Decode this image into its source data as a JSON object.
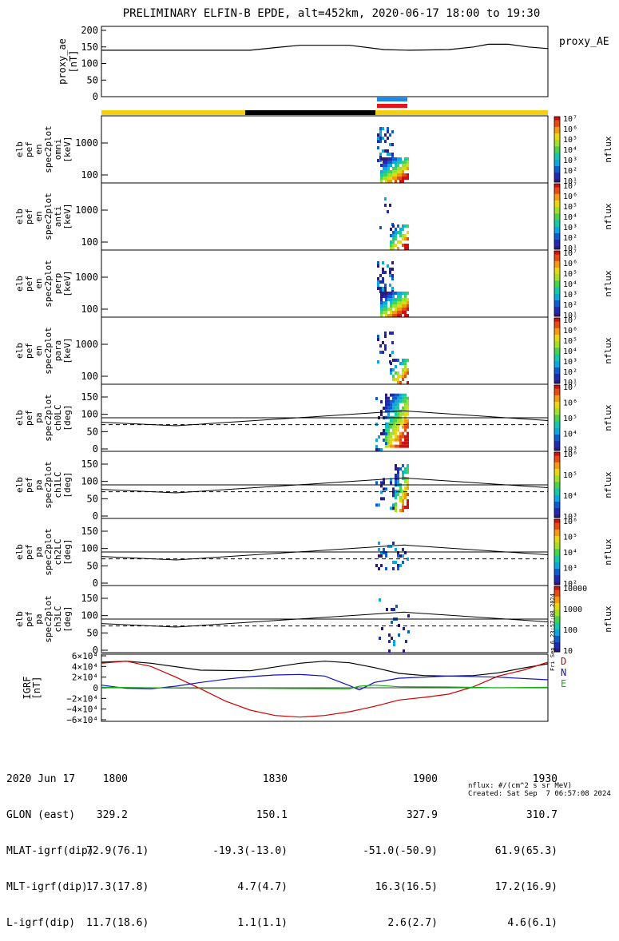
{
  "title": "PRELIMINARY ELFIN-B EPDE, alt=452km, 2020-06-17 18:00 to 19:30",
  "colors": {
    "yellow": "#f5d010",
    "black": "#000000",
    "blue_bar": "#1e88e5",
    "red_bar": "#e8121a",
    "igrf_d": "#d00000",
    "igrf_n": "#1010c0",
    "igrf_e": "#10b010"
  },
  "chart_data": [
    {
      "type": "line",
      "name": "proxy_ae",
      "ylabel_lines": [
        "proxy_ae",
        "[nT]"
      ],
      "legend": "proxy_AE",
      "ylim": [
        0,
        200
      ],
      "yticks": [
        "0",
        "50",
        "100",
        "150",
        "200"
      ],
      "x_minutes": [
        0,
        30,
        35,
        40,
        50,
        57,
        62,
        70,
        75,
        78,
        82,
        86,
        90
      ],
      "values": [
        140,
        140,
        148,
        155,
        155,
        142,
        140,
        142,
        150,
        158,
        158,
        150,
        145
      ]
    },
    {
      "type": "heatmap",
      "name": "omni",
      "ylabel_lines": [
        "elb",
        "pef",
        "en",
        "spec2plot",
        "omni",
        "[keV]"
      ],
      "yticks": [
        "100",
        "1000"
      ],
      "colorbar": {
        "label": "nflux",
        "ticks": [
          "10¹",
          "10²",
          "10³",
          "10⁴",
          "10⁵",
          "10⁶",
          "10⁷"
        ]
      }
    },
    {
      "type": "heatmap",
      "name": "anti",
      "ylabel_lines": [
        "elb",
        "pef",
        "en",
        "spec2plot",
        "anti",
        "[keV]"
      ],
      "yticks": [
        "100",
        "1000"
      ],
      "colorbar": {
        "label": "nflux",
        "ticks": [
          "10¹",
          "10²",
          "10³",
          "10⁴",
          "10⁵",
          "10⁶",
          "10⁷"
        ]
      }
    },
    {
      "type": "heatmap",
      "name": "perp",
      "ylabel_lines": [
        "elb",
        "pef",
        "en",
        "spec2plot",
        "perp",
        "[keV]"
      ],
      "yticks": [
        "100",
        "1000"
      ],
      "colorbar": {
        "label": "nflux",
        "ticks": [
          "10¹",
          "10²",
          "10³",
          "10⁴",
          "10⁵",
          "10⁶",
          "10⁷"
        ]
      }
    },
    {
      "type": "heatmap",
      "name": "para",
      "ylabel_lines": [
        "elb",
        "pef",
        "en",
        "spec2plot",
        "para",
        "[keV]"
      ],
      "yticks": [
        "100",
        "1000"
      ],
      "colorbar": {
        "label": "nflux",
        "ticks": [
          "10¹",
          "10²",
          "10³",
          "10⁴",
          "10⁵",
          "10⁶",
          "10⁷"
        ]
      }
    },
    {
      "type": "heatmap",
      "name": "ch0LC",
      "ylabel_lines": [
        "elb",
        "pef",
        "pa",
        "spec2plot",
        "ch0LC",
        "[deg]"
      ],
      "yticks": [
        "0",
        "50",
        "100",
        "150"
      ],
      "colorbar": {
        "label": "nflux",
        "ticks": [
          "10³",
          "10⁴",
          "10⁵",
          "10⁶",
          "10⁷"
        ]
      }
    },
    {
      "type": "heatmap",
      "name": "ch1LC",
      "ylabel_lines": [
        "elb",
        "pef",
        "pa",
        "spec2plot",
        "ch1LC",
        "[deg]"
      ],
      "yticks": [
        "0",
        "50",
        "100",
        "150"
      ],
      "colorbar": {
        "label": "nflux",
        "ticks": [
          "10³",
          "10⁴",
          "10⁵",
          "10⁶"
        ]
      }
    },
    {
      "type": "heatmap",
      "name": "ch2LC",
      "ylabel_lines": [
        "elb",
        "pef",
        "pa",
        "spec2plot",
        "ch2LC",
        "[deg]"
      ],
      "yticks": [
        "0",
        "50",
        "100",
        "150"
      ],
      "colorbar": {
        "label": "nflux",
        "ticks": [
          "10²",
          "10³",
          "10⁴",
          "10⁵",
          "10⁶"
        ]
      }
    },
    {
      "type": "heatmap",
      "name": "ch3LC",
      "ylabel_lines": [
        "elb",
        "pef",
        "pa",
        "spec2plot",
        "ch3LC",
        "[deg]"
      ],
      "yticks": [
        "0",
        "50",
        "100",
        "150"
      ],
      "colorbar": {
        "label": "nflux",
        "ticks": [
          "10",
          "100",
          "1000",
          "10000"
        ]
      }
    },
    {
      "type": "line",
      "name": "IGRF",
      "ylabel_lines": [
        "IGRF",
        "[nT]"
      ],
      "ylim": [
        -60000,
        60000
      ],
      "yticks": [
        "−6×10⁴",
        "−4×10⁴",
        "−2×10⁴",
        "0",
        "2×10⁴",
        "4×10⁴",
        "6×10⁴"
      ],
      "legend": [
        "D",
        "N",
        "E"
      ],
      "series": [
        {
          "name": "total",
          "x_minutes": [
            0,
            5,
            10,
            20,
            30,
            40,
            45,
            50,
            55,
            60,
            65,
            70,
            75,
            80,
            85,
            90
          ],
          "values": [
            48000,
            50000,
            46000,
            33000,
            32000,
            46000,
            50000,
            47000,
            38000,
            27000,
            23000,
            22000,
            23000,
            28000,
            37000,
            45000
          ]
        },
        {
          "name": "D",
          "x_minutes": [
            0,
            5,
            10,
            15,
            20,
            25,
            30,
            35,
            40,
            45,
            50,
            55,
            60,
            65,
            70,
            75,
            80,
            85,
            90
          ],
          "values": [
            46000,
            50000,
            40000,
            20000,
            -2000,
            -25000,
            -42000,
            -52000,
            -55000,
            -52000,
            -45000,
            -35000,
            -23000,
            -18000,
            -12000,
            2000,
            22000,
            33000,
            48000
          ]
        },
        {
          "name": "N",
          "x_minutes": [
            0,
            5,
            10,
            15,
            20,
            25,
            30,
            35,
            40,
            45,
            50,
            52,
            55,
            60,
            70,
            80,
            90
          ],
          "values": [
            5000,
            -1000,
            -2000,
            3000,
            10000,
            16000,
            21000,
            24000,
            25000,
            22000,
            4000,
            -4000,
            10000,
            18000,
            22000,
            20000,
            15000
          ]
        },
        {
          "name": "E",
          "x_minutes": [
            0,
            10,
            20,
            30,
            40,
            50,
            52,
            55,
            60,
            70,
            80,
            90
          ],
          "values": [
            1000,
            0,
            -1000,
            -1000,
            -1500,
            -2000,
            3000,
            5000,
            2000,
            1500,
            0,
            1000
          ]
        }
      ]
    }
  ],
  "footer": {
    "label_col": [
      "2020 Jun 17",
      "GLON (east)",
      "MLAT-igrf(dip)",
      "MLT-igrf(dip)",
      "L-igrf(dip)"
    ],
    "col1": [
      "1800",
      "329.2",
      "72.9(76.1)",
      "17.3(17.8)",
      "11.7(18.6)"
    ],
    "col2": [
      "1830",
      "150.1",
      "-19.3(-13.0)",
      "4.7(4.7)",
      "1.1(1.1)"
    ],
    "col3": [
      "1900",
      "327.9",
      "-51.0(-50.9)",
      "16.3(16.5)",
      "2.6(2.7)"
    ],
    "col4": [
      "1930",
      "310.7",
      "61.9(65.3)",
      "17.2(16.9)",
      "4.6(6.1)"
    ],
    "nflux_note": "nflux: #/(cm^2 s sr MeV)",
    "created": "Created: Sat Sep  7 06:57:08 2024",
    "side_stamp": "Fri Sep  6 23:57:08 2024"
  }
}
